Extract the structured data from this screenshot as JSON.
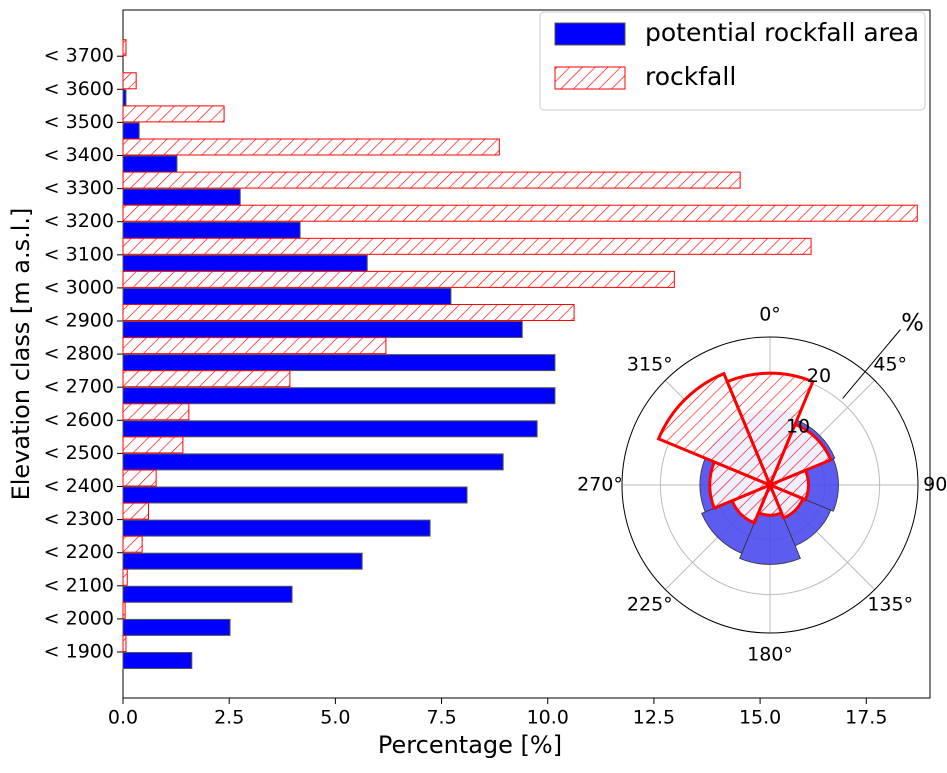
{
  "chart_data": [
    {
      "type": "hbar",
      "x_label": "Percentage [%]",
      "y_label": "Elevation class [m a.s.l.]",
      "categories": [
        "< 1900",
        "< 2000",
        "< 2100",
        "< 2200",
        "< 2300",
        "< 2400",
        "< 2500",
        "< 2600",
        "< 2700",
        "< 2800",
        "< 2900",
        "< 3000",
        "< 3100",
        "< 3200",
        "< 3300",
        "< 3400",
        "< 3500",
        "< 3600",
        "< 3700"
      ],
      "series": [
        {
          "name": "potential rockfall area",
          "color": "#0000ff",
          "hatch": false,
          "values": [
            1.62,
            2.52,
            3.98,
            5.63,
            7.23,
            8.1,
            8.95,
            9.75,
            10.17,
            10.17,
            9.4,
            7.72,
            5.75,
            4.17,
            2.76,
            1.27,
            0.38,
            0.07,
            0
          ]
        },
        {
          "name": "rockfall",
          "color": "#ff0000",
          "hatch": true,
          "values": [
            0.07,
            0.05,
            0.1,
            0.45,
            0.6,
            0.78,
            1.41,
            1.55,
            3.93,
            6.19,
            10.62,
            12.98,
            16.2,
            18.7,
            14.53,
            8.86,
            2.38,
            0.31,
            0.07
          ]
        }
      ],
      "xlim": [
        0,
        19
      ],
      "xticks": [
        {
          "value": 0,
          "label": "0.0"
        },
        2.5,
        {
          "value": 5,
          "label": "5.0"
        },
        7.5,
        {
          "value": 10,
          "label": "10.0"
        },
        12.5,
        {
          "value": 15,
          "label": "15.0"
        },
        17.5
      ],
      "legend": "upper right"
    },
    {
      "type": "polar_bar",
      "thetaticks": [
        {
          "value": 0,
          "label": "0°"
        },
        {
          "value": 45,
          "label": "45°"
        },
        {
          "value": 90,
          "label": "90°"
        },
        {
          "value": 135,
          "label": "135°"
        },
        {
          "value": 180,
          "label": "180°"
        },
        {
          "value": 225,
          "label": "225°"
        },
        {
          "value": 270,
          "label": "270°"
        },
        {
          "value": 315,
          "label": "315°"
        }
      ],
      "rlim": [
        0,
        27
      ],
      "rticks": [
        10,
        20
      ],
      "r_label": "%",
      "series": [
        {
          "name": "potential rockfall area",
          "color": "#4a4af0",
          "hatch": false,
          "values": [
            13.6,
            12.8,
            12.5,
            12,
            14.5,
            13.5,
            12.8,
            12.8
          ]
        },
        {
          "name": "rockfall",
          "color": "#ff0000",
          "hatch": true,
          "values": [
            20.4,
            12,
            7,
            6.5,
            5.5,
            7.5,
            11,
            22
          ]
        }
      ]
    }
  ]
}
